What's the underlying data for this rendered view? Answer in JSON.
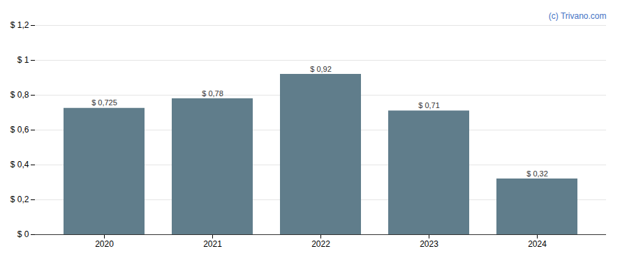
{
  "chart_data": {
    "type": "bar",
    "categories": [
      "2020",
      "2021",
      "2022",
      "2023",
      "2024"
    ],
    "values": [
      0.725,
      0.78,
      0.92,
      0.71,
      0.32
    ],
    "value_labels": [
      "$ 0,725",
      "$ 0,78",
      "$ 0,92",
      "$ 0,71",
      "$ 0,32"
    ],
    "data_labels": true,
    "color": "#607d8b",
    "ylim": [
      0,
      1.2
    ],
    "yticks": [
      {
        "value": 0,
        "label": "$ 0"
      },
      {
        "value": 0.2,
        "label": "$ 0,2"
      },
      {
        "value": 0.4,
        "label": "$ 0,4"
      },
      {
        "value": 0.6,
        "label": "$ 0,6"
      },
      {
        "value": 0.8,
        "label": "$ 0,8"
      },
      {
        "value": 1.0,
        "label": "$ 1"
      },
      {
        "value": 1.2,
        "label": "$ 1,2"
      }
    ],
    "grid": true,
    "annotations": [
      {
        "text": "(c) Trivano.com",
        "color": "#4472c4"
      }
    ]
  }
}
